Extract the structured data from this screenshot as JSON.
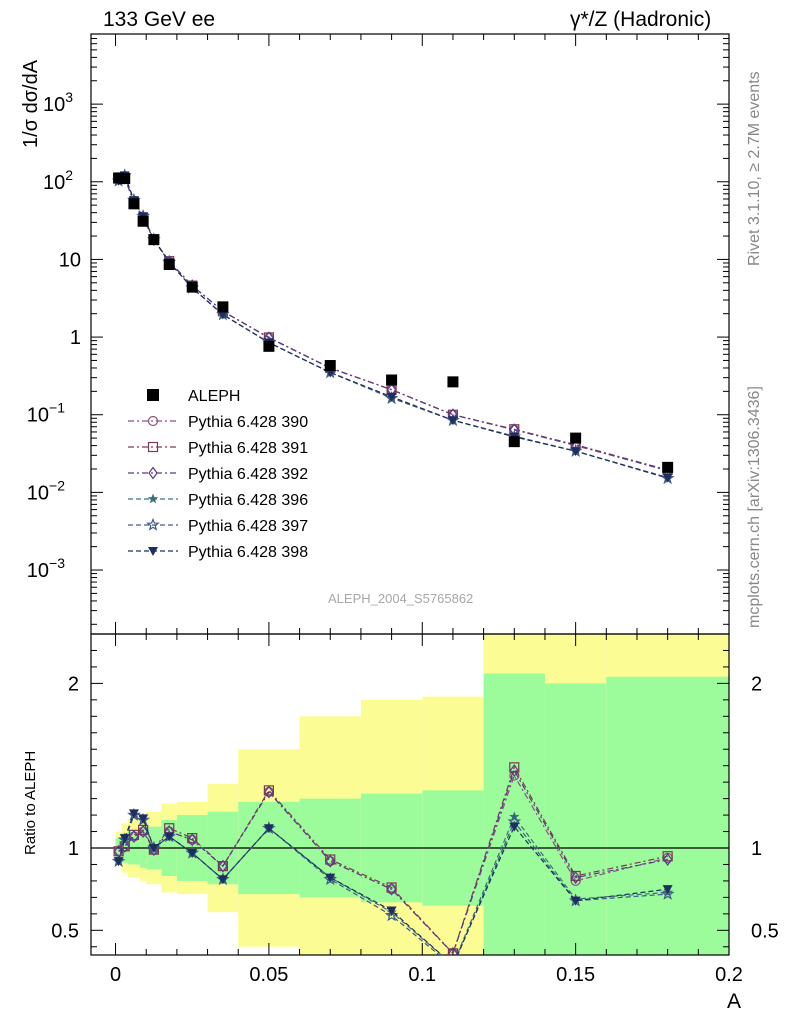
{
  "header": {
    "left": "133 GeV ee",
    "right": "γ*/Z (Hadronic)"
  },
  "side_text": {
    "rivet": "Rivet 3.1.10, ≥ 2.7M events",
    "source": "mcplots.cern.ch [arXiv:1306.3436]"
  },
  "watermark": "ALEPH_2004_S5765862",
  "chart_data": [
    {
      "type": "scatter",
      "title": "",
      "xlabel": "A",
      "ylabel": "1/σ dσ/dA",
      "yscale": "log",
      "xlim": [
        -0.008,
        0.2
      ],
      "ylim": [
        0.00015,
        8000
      ],
      "y_ticks": [
        {
          "v": 0.001,
          "label": "10^-3"
        },
        {
          "v": 0.01,
          "label": "10^-2"
        },
        {
          "v": 0.1,
          "label": "10^-1"
        },
        {
          "v": 1,
          "label": "1"
        },
        {
          "v": 10,
          "label": "10"
        },
        {
          "v": 100,
          "label": "10^2"
        },
        {
          "v": 1000,
          "label": "10^3"
        }
      ],
      "legend_position": "bottom-left",
      "x": [
        0.001,
        0.003,
        0.006,
        0.009,
        0.0125,
        0.0175,
        0.025,
        0.035,
        0.05,
        0.07,
        0.09,
        0.11,
        0.13,
        0.15,
        0.18
      ],
      "data": {
        "name": "ALEPH",
        "values": [
          112,
          110,
          52,
          31,
          18,
          8.6,
          4.4,
          2.45,
          0.76,
          0.43,
          0.28,
          0.265,
          0.045,
          0.05,
          0.021
        ]
      },
      "series": [
        {
          "name": "Pythia 6.428 390",
          "color": "#8b4f86",
          "marker": "circle-open",
          "dash": "dashdot",
          "values": [
            110,
            112,
            55,
            34,
            18,
            9.4,
            4.6,
            2.15,
            0.98,
            0.4,
            0.21,
            0.1,
            0.064,
            0.04,
            0.019
          ]
        },
        {
          "name": "Pythia 6.428 391",
          "color": "#7c3b4c",
          "marker": "square-open",
          "dash": "dashdot",
          "values": [
            110,
            112,
            55,
            34,
            18,
            9.5,
            4.6,
            2.15,
            0.99,
            0.4,
            0.21,
            0.1,
            0.065,
            0.041,
            0.0195
          ]
        },
        {
          "name": "Pythia 6.428 392",
          "color": "#5b3a8c",
          "marker": "diamond-open",
          "dash": "dashdot",
          "values": [
            110,
            112,
            55,
            34,
            18,
            9.4,
            4.6,
            2.15,
            0.98,
            0.4,
            0.21,
            0.1,
            0.064,
            0.041,
            0.019
          ]
        },
        {
          "name": "Pythia 6.428 396",
          "color": "#3e6f7e",
          "marker": "star-filled",
          "dash": "dash",
          "values": [
            103,
            120,
            58,
            36,
            18,
            9.2,
            4.3,
            1.95,
            0.85,
            0.35,
            0.165,
            0.085,
            0.053,
            0.034,
            0.0153
          ]
        },
        {
          "name": "Pythia 6.428 397",
          "color": "#3d5b85",
          "marker": "star-open",
          "dash": "dash",
          "values": [
            103,
            120,
            58,
            36,
            18,
            9.2,
            4.3,
            1.95,
            0.85,
            0.35,
            0.163,
            0.085,
            0.052,
            0.034,
            0.0152
          ]
        },
        {
          "name": "Pythia 6.428 398",
          "color": "#1e2e60",
          "marker": "triangle-down-filled",
          "dash": "dash",
          "values": [
            103,
            121,
            58,
            36,
            18,
            9.2,
            4.3,
            1.95,
            0.85,
            0.35,
            0.17,
            0.085,
            0.052,
            0.034,
            0.0155
          ]
        }
      ]
    },
    {
      "type": "line",
      "xlabel": "A",
      "ylabel": "Ratio to ALEPH",
      "xlim": [
        -0.008,
        0.2
      ],
      "ylim": [
        0.35,
        2.3
      ],
      "x_ticks": [
        {
          "v": 0,
          "label": "0"
        },
        {
          "v": 0.05,
          "label": "0.05"
        },
        {
          "v": 0.1,
          "label": "0.1"
        },
        {
          "v": 0.15,
          "label": "0.15"
        },
        {
          "v": 0.2,
          "label": "0.2"
        }
      ],
      "y_ticks": [
        {
          "v": 0.5,
          "label": "0.5"
        },
        {
          "v": 1,
          "label": "1"
        },
        {
          "v": 2,
          "label": "2"
        }
      ],
      "reference_line": 1,
      "bins": [
        {
          "x0": 0.0,
          "x1": 0.002,
          "g": [
            0.94,
            1.06
          ],
          "y": [
            0.9,
            1.1
          ]
        },
        {
          "x0": 0.002,
          "x1": 0.004,
          "g": [
            0.91,
            1.09
          ],
          "y": [
            0.85,
            1.15
          ]
        },
        {
          "x0": 0.004,
          "x1": 0.008,
          "g": [
            0.9,
            1.1
          ],
          "y": [
            0.82,
            1.18
          ]
        },
        {
          "x0": 0.008,
          "x1": 0.01,
          "g": [
            0.88,
            1.12
          ],
          "y": [
            0.8,
            1.2
          ]
        },
        {
          "x0": 0.01,
          "x1": 0.015,
          "g": [
            0.87,
            1.13
          ],
          "y": [
            0.78,
            1.22
          ]
        },
        {
          "x0": 0.015,
          "x1": 0.02,
          "g": [
            0.83,
            1.17
          ],
          "y": [
            0.73,
            1.27
          ]
        },
        {
          "x0": 0.02,
          "x1": 0.03,
          "g": [
            0.8,
            1.2
          ],
          "y": [
            0.72,
            1.28
          ]
        },
        {
          "x0": 0.03,
          "x1": 0.04,
          "g": [
            0.78,
            1.22
          ],
          "y": [
            0.61,
            1.39
          ]
        },
        {
          "x0": 0.04,
          "x1": 0.06,
          "g": [
            0.72,
            1.28
          ],
          "y": [
            0.4,
            1.6
          ]
        },
        {
          "x0": 0.06,
          "x1": 0.08,
          "g": [
            0.7,
            1.3
          ],
          "y": [
            0.2,
            1.8
          ]
        },
        {
          "x0": 0.08,
          "x1": 0.1,
          "g": [
            0.67,
            1.33
          ],
          "y": [
            0.1,
            1.9
          ]
        },
        {
          "x0": 0.1,
          "x1": 0.12,
          "g": [
            0.65,
            1.35
          ],
          "y": [
            0.08,
            1.92
          ]
        },
        {
          "x0": 0.12,
          "x1": 0.14,
          "g": [
            0.2,
            2.06
          ],
          "y": [
            0.1,
            2.6
          ]
        },
        {
          "x0": 0.14,
          "x1": 0.16,
          "g": [
            0.2,
            2.0
          ],
          "y": [
            0.1,
            2.55
          ]
        },
        {
          "x0": 0.16,
          "x1": 0.2,
          "g": [
            0.2,
            2.04
          ],
          "y": [
            0.1,
            2.6
          ]
        }
      ],
      "band_colors": {
        "stat": "#9cfc9c",
        "total": "#fcfc94"
      },
      "x": [
        0.001,
        0.003,
        0.006,
        0.009,
        0.0125,
        0.0175,
        0.025,
        0.035,
        0.05,
        0.07,
        0.09,
        0.11,
        0.13,
        0.15,
        0.18
      ],
      "series": [
        {
          "name": "Pythia 6.428 390",
          "values": [
            0.98,
            1.01,
            1.07,
            1.1,
            0.99,
            1.1,
            1.05,
            0.89,
            1.34,
            0.92,
            0.75,
            0.36,
            1.44,
            0.8,
            0.94
          ]
        },
        {
          "name": "Pythia 6.428 391",
          "values": [
            0.98,
            1.01,
            1.08,
            1.11,
            0.99,
            1.12,
            1.06,
            0.89,
            1.35,
            0.93,
            0.76,
            0.36,
            1.49,
            0.83,
            0.95
          ]
        },
        {
          "name": "Pythia 6.428 392",
          "values": [
            0.98,
            1.01,
            1.07,
            1.1,
            0.99,
            1.1,
            1.05,
            0.89,
            1.34,
            0.92,
            0.75,
            0.36,
            1.47,
            0.82,
            0.93
          ]
        },
        {
          "name": "Pythia 6.428 396",
          "values": [
            0.92,
            1.05,
            1.2,
            1.17,
            1.0,
            1.07,
            0.97,
            0.81,
            1.12,
            0.82,
            0.61,
            0.29,
            1.19,
            0.69,
            0.73
          ]
        },
        {
          "name": "Pythia 6.428 397",
          "values": [
            0.92,
            1.05,
            1.2,
            1.17,
            1.0,
            1.07,
            0.97,
            0.81,
            1.12,
            0.81,
            0.59,
            0.28,
            1.16,
            0.68,
            0.72
          ]
        },
        {
          "name": "Pythia 6.428 398",
          "values": [
            0.92,
            1.06,
            1.21,
            1.18,
            1.0,
            1.07,
            0.97,
            0.81,
            1.12,
            0.82,
            0.62,
            0.29,
            1.13,
            0.68,
            0.75
          ]
        }
      ]
    }
  ]
}
